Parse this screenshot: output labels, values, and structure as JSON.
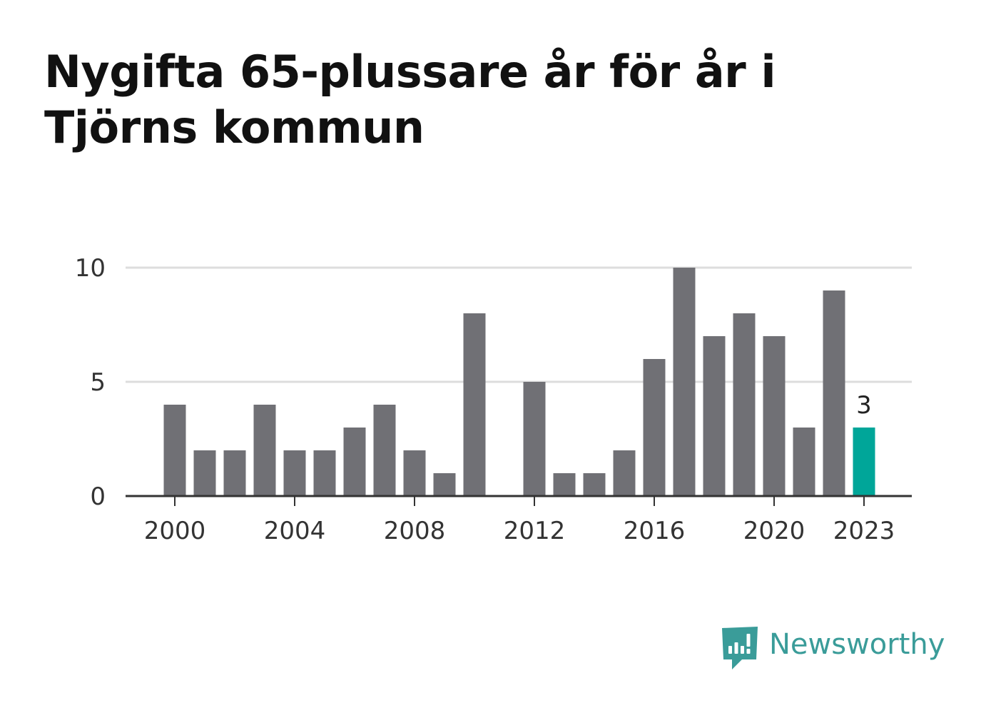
{
  "title": "Nygifta 65-plussare år för år i Tjörns kommun",
  "brand": {
    "name": "Newsworthy",
    "color": "#3a9c99",
    "icon": "bar-chart-speech-bubble-icon"
  },
  "colors": {
    "bar": "#707075",
    "highlight": "#00a699",
    "grid": "#dddddd",
    "axis": "#333333"
  },
  "chart_data": {
    "type": "bar",
    "title": "Nygifta 65-plussare år för år i Tjörns kommun",
    "xlabel": "",
    "ylabel": "",
    "categories": [
      2000,
      2001,
      2002,
      2003,
      2004,
      2005,
      2006,
      2007,
      2008,
      2009,
      2010,
      2011,
      2012,
      2013,
      2014,
      2015,
      2016,
      2017,
      2018,
      2019,
      2020,
      2021,
      2022,
      2023
    ],
    "values": [
      4,
      2,
      2,
      4,
      2,
      2,
      3,
      4,
      2,
      1,
      8,
      0,
      5,
      1,
      1,
      2,
      6,
      10,
      7,
      8,
      7,
      3,
      9,
      3
    ],
    "highlight": 2023,
    "data_labels": [
      {
        "x": 2023,
        "text": "3"
      }
    ],
    "x_ticks": [
      "2000",
      "2004",
      "2008",
      "2012",
      "2016",
      "2020",
      "2023"
    ],
    "y_ticks": [
      "0",
      "5",
      "10"
    ],
    "ylim": [
      0,
      10
    ],
    "grid": true,
    "legend": "none"
  }
}
